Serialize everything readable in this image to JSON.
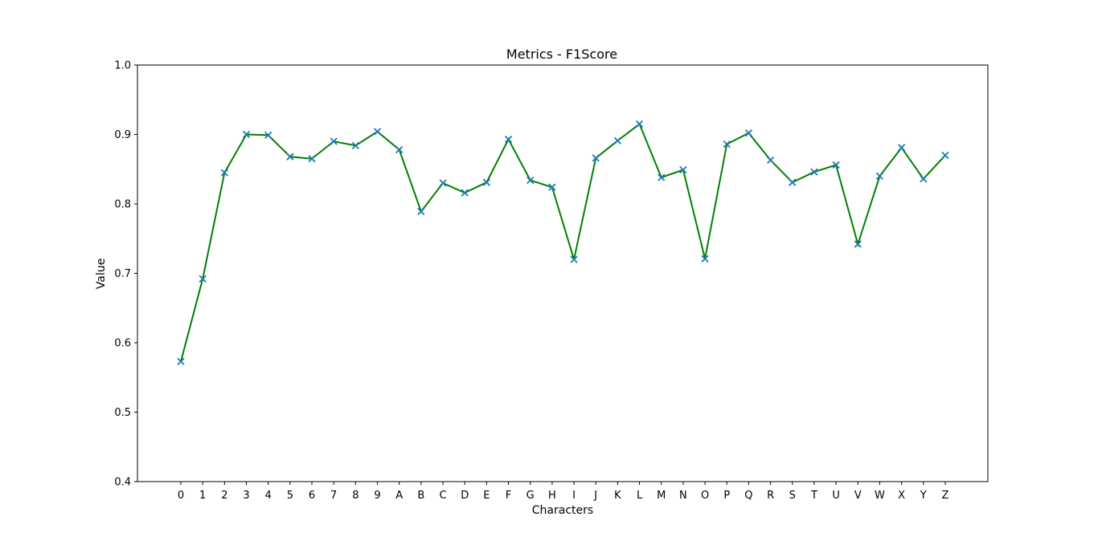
{
  "chart_data": {
    "type": "line",
    "title": "Metrics - F1Score",
    "xlabel": "Characters",
    "ylabel": "Value",
    "ylim": [
      0.4,
      1.0
    ],
    "yticks": [
      "0.4",
      "0.5",
      "0.6",
      "0.7",
      "0.8",
      "0.9",
      "1.0"
    ],
    "grid": false,
    "legend": "none",
    "categories": [
      "0",
      "1",
      "2",
      "3",
      "4",
      "5",
      "6",
      "7",
      "8",
      "9",
      "A",
      "B",
      "C",
      "D",
      "E",
      "F",
      "G",
      "H",
      "I",
      "J",
      "K",
      "L",
      "M",
      "N",
      "O",
      "P",
      "Q",
      "R",
      "S",
      "T",
      "U",
      "V",
      "W",
      "X",
      "Y",
      "Z"
    ],
    "series": [
      {
        "values": [
          0.573,
          0.692,
          0.845,
          0.9,
          0.899,
          0.868,
          0.865,
          0.89,
          0.884,
          0.904,
          0.878,
          0.789,
          0.83,
          0.816,
          0.831,
          0.893,
          0.834,
          0.824,
          0.72,
          0.866,
          0.891,
          0.915,
          0.838,
          0.849,
          0.721,
          0.886,
          0.902,
          0.863,
          0.831,
          0.846,
          0.856,
          0.742,
          0.84,
          0.881,
          0.836,
          0.87
        ],
        "line_color": "#008000",
        "marker": "x",
        "marker_color": "#1f77b4"
      }
    ]
  }
}
